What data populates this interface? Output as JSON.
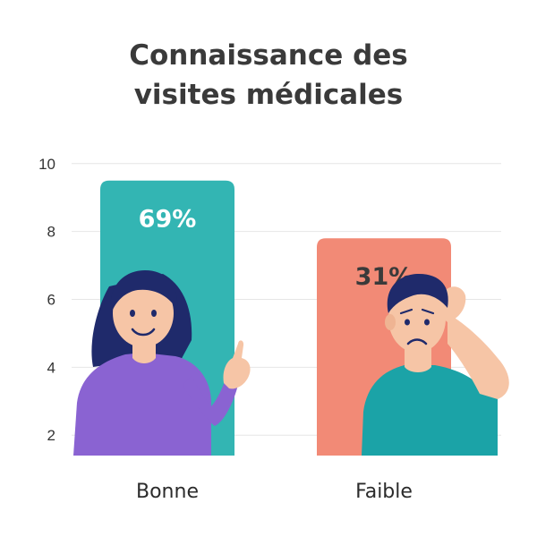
{
  "chart_data": {
    "type": "bar",
    "title_lines": [
      "Connaissance des",
      "visites médicales"
    ],
    "categories": [
      "Bonne",
      "Faible"
    ],
    "values": [
      9.5,
      7.8
    ],
    "data_labels": [
      "69%",
      "31%"
    ],
    "y_ticks": [
      2,
      4,
      6,
      8,
      10
    ],
    "ylim": [
      1.4,
      10.6
    ],
    "grid": true,
    "bar_colors": [
      "#33b5b3",
      "#f28a76"
    ],
    "label_colors": [
      "#ffffff",
      "#3a3a3a"
    ],
    "illustrations": [
      "woman-pointing",
      "man-scratching-head"
    ]
  }
}
